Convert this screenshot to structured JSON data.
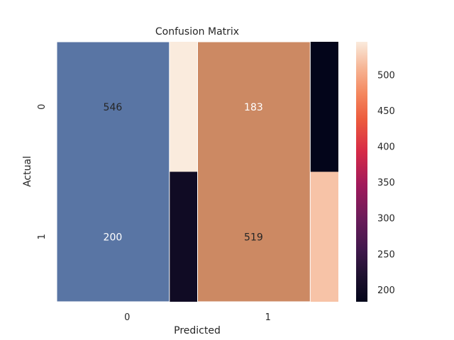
{
  "chart_data": {
    "type": "heatmap",
    "title": "Confusion Matrix",
    "xlabel": "Predicted",
    "ylabel": "Actual",
    "x_categories": [
      "0",
      "1"
    ],
    "y_categories": [
      "0",
      "1"
    ],
    "values": [
      [
        546,
        183
      ],
      [
        200,
        519
      ]
    ],
    "colorbar": {
      "colormap": "rocket",
      "range": [
        183,
        546
      ],
      "ticks": [
        200,
        250,
        300,
        350,
        400,
        450,
        500
      ]
    },
    "overlay_bars": {
      "colors": [
        "#5975a4",
        "#cc8963"
      ]
    }
  }
}
